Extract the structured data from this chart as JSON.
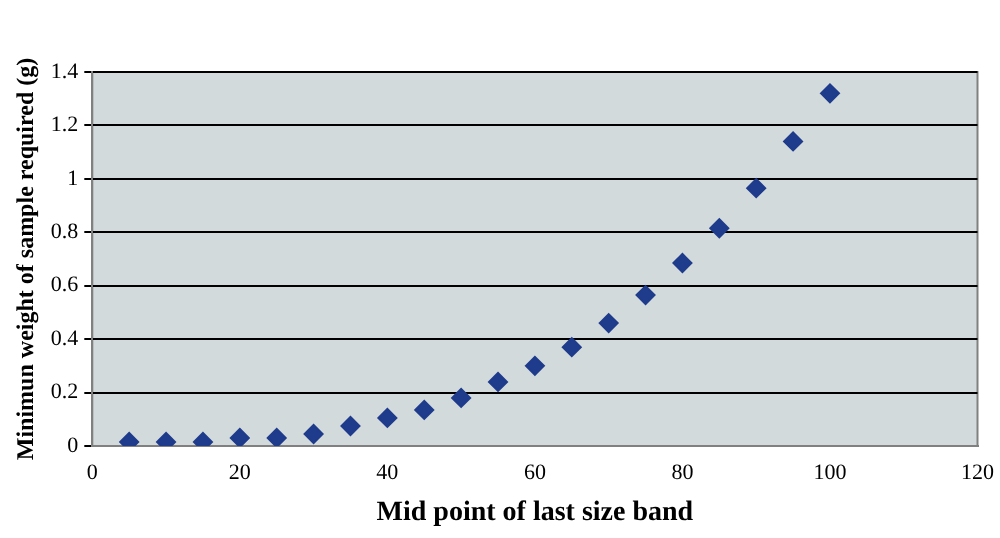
{
  "chart_data": {
    "type": "scatter",
    "xlabel": "Mid point of last size band",
    "ylabel": "Minimun weight of sample required (g)",
    "x": [
      5,
      10,
      15,
      20,
      25,
      30,
      35,
      40,
      45,
      50,
      55,
      60,
      65,
      70,
      75,
      80,
      85,
      90,
      95,
      100
    ],
    "series": [
      {
        "color": "#1f3b8c",
        "values": [
          0.015,
          0.015,
          0.015,
          0.03,
          0.03,
          0.045,
          0.075,
          0.105,
          0.135,
          0.18,
          0.24,
          0.3,
          0.37,
          0.46,
          0.565,
          0.685,
          0.815,
          0.965,
          1.14,
          1.32
        ]
      }
    ],
    "xlim": [
      0,
      120
    ],
    "xticks": [
      0,
      20,
      40,
      60,
      80,
      100,
      120
    ],
    "ylim": [
      0,
      1.4
    ],
    "yticks": [
      0,
      0.2,
      0.4,
      0.6,
      0.8,
      1,
      1.2,
      1.4
    ],
    "grid": "y",
    "marker": "diamond",
    "legend": false
  }
}
